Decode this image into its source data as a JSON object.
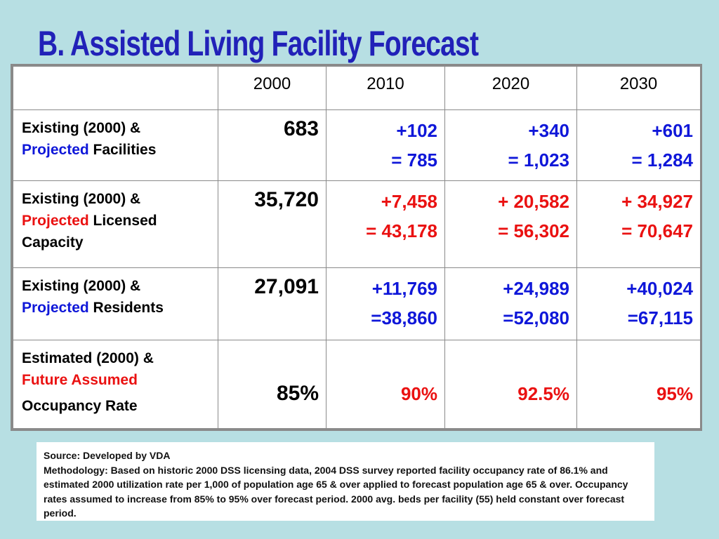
{
  "title": "B.  Assisted Living Facility Forecast",
  "table": {
    "header": [
      "",
      "2000",
      "2010",
      "2020",
      "2030"
    ],
    "rows": [
      {
        "label_prefix": "Existing (2000) &",
        "label_highlight": "Projected",
        "label_rest": " Facilities",
        "highlight_color": "blue",
        "base": "683",
        "values": [
          {
            "change": "+102",
            "total": "= 785"
          },
          {
            "change": "+340",
            "total": "= 1,023"
          },
          {
            "change": "+601",
            "total": "= 1,284"
          }
        ],
        "value_color": "blue"
      },
      {
        "label_prefix": "Existing (2000) &",
        "label_highlight": "Projected",
        "label_rest": " Licensed Capacity",
        "highlight_color": "red",
        "base": "35,720",
        "values": [
          {
            "change": "+7,458",
            "total": "= 43,178"
          },
          {
            "change": "+ 20,582",
            "total": "= 56,302"
          },
          {
            "change": "+ 34,927",
            "total": "= 70,647"
          }
        ],
        "value_color": "red"
      },
      {
        "label_prefix": "Existing (2000) &",
        "label_highlight": "Projected",
        "label_rest": " Residents",
        "highlight_color": "blue",
        "base": "27,091",
        "values": [
          {
            "change": "+11,769",
            "total": "=38,860"
          },
          {
            "change": "+24,989",
            "total": "=52,080"
          },
          {
            "change": "+40,024",
            "total": "=67,115"
          }
        ],
        "value_color": "blue"
      },
      {
        "label_prefix": "Estimated (2000) &",
        "label_highlight": "Future Assumed",
        "label_rest": "Occupancy Rate",
        "highlight_color": "red",
        "base": "85%",
        "values": [
          "90%",
          "92.5%",
          "95%"
        ],
        "value_color": "red"
      }
    ]
  },
  "source": {
    "line1": "Source: Developed by VDA",
    "line2": "Methodology: Based on historic 2000 DSS licensing data, 2004 DSS survey reported facility occupancy rate of 86.1% and estimated 2000 utilization rate per 1,000 of population age 65 & over applied to forecast population age 65 & over.  Occupancy rates assumed to increase from 85% to 95% over forecast period.  2000 avg. beds per facility (55) held constant over forecast period."
  },
  "colors": {
    "background": "#b7dfe3",
    "title": "#2121b8",
    "blue": "#0f17d9",
    "red": "#ea1111",
    "border": "#8a8a8a"
  }
}
